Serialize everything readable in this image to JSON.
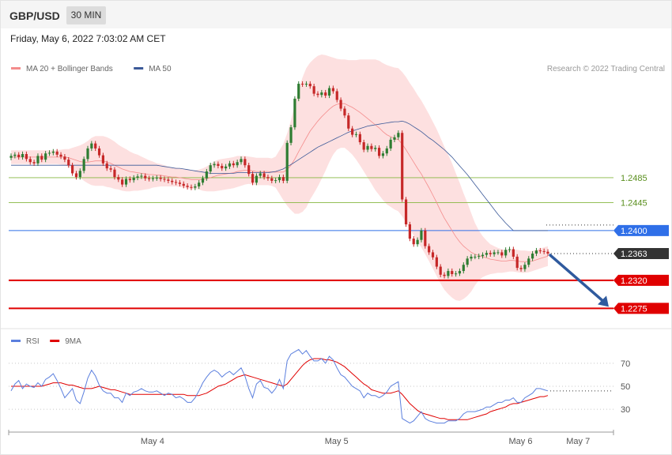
{
  "header": {
    "symbol": "GBP/USD",
    "timeframe": "30 MIN",
    "datetime": "Friday, May 6, 2022 7:03:02 AM CET"
  },
  "colors": {
    "bollinger": "#f48c8c",
    "bollinger_fill": "#fde0e0",
    "ma50": "#3b5998",
    "candle_up": "#2e7d32",
    "candle_down": "#c62828",
    "level_green": "#86b740",
    "level_blue": "#2f6fe8",
    "level_current": "#333333",
    "level_red": "#e00000",
    "arrow": "#2f5a9e",
    "rsi": "#5b7fde",
    "rsi_ma": "#e00000"
  },
  "chart_data": [
    {
      "type": "candlestick",
      "title": "GBP/USD",
      "legend": [
        {
          "name": "MA 20 + Bollinger Bands",
          "color": "#f48c8c"
        },
        {
          "name": "MA 50",
          "color": "#3b5998"
        }
      ],
      "copyright": "Research © 2022 Trading Central",
      "x_labels": [
        {
          "label": "May 4",
          "index": 34
        },
        {
          "label": "May 5",
          "index": 82
        },
        {
          "label": "May 6",
          "index": 130
        },
        {
          "label": "May 7",
          "index": 145
        }
      ],
      "ylim": [
        1.225,
        1.265
      ],
      "levels": [
        {
          "value": 1.2485,
          "label": "1.2485",
          "style": "resistance"
        },
        {
          "value": 1.2445,
          "label": "1.2445",
          "style": "resistance"
        },
        {
          "value": 1.24,
          "label": "1.2400",
          "style": "pivot"
        },
        {
          "value": 1.2363,
          "label": "1.2363",
          "style": "current"
        },
        {
          "value": 1.232,
          "label": "1.2320",
          "style": "support"
        },
        {
          "value": 1.2275,
          "label": "1.2275",
          "style": "support"
        }
      ],
      "close": [
        1.252,
        1.2522,
        1.2518,
        1.2523,
        1.2515,
        1.251,
        1.2508,
        1.252,
        1.2514,
        1.2524,
        1.2525,
        1.2527,
        1.2522,
        1.2519,
        1.2514,
        1.2505,
        1.2492,
        1.2486,
        1.2496,
        1.2515,
        1.2532,
        1.254,
        1.2532,
        1.2521,
        1.2508,
        1.25,
        1.2498,
        1.2486,
        1.2482,
        1.2474,
        1.2483,
        1.2481,
        1.2485,
        1.2487,
        1.2488,
        1.2484,
        1.2483,
        1.2484,
        1.2485,
        1.2483,
        1.2482,
        1.248,
        1.2478,
        1.2477,
        1.2475,
        1.2472,
        1.247,
        1.2469,
        1.2471,
        1.2477,
        1.2484,
        1.2495,
        1.2505,
        1.2507,
        1.2504,
        1.25,
        1.2503,
        1.2508,
        1.2505,
        1.251,
        1.2515,
        1.2505,
        1.2491,
        1.2477,
        1.2488,
        1.2492,
        1.2486,
        1.2484,
        1.248,
        1.2481,
        1.2486,
        1.248,
        1.2541,
        1.2566,
        1.2612,
        1.2636,
        1.2635,
        1.2636,
        1.2632,
        1.262,
        1.2618,
        1.2622,
        1.2617,
        1.2629,
        1.2624,
        1.261,
        1.2596,
        1.2585,
        1.2564,
        1.2554,
        1.2555,
        1.2542,
        1.253,
        1.2536,
        1.2531,
        1.2533,
        1.252,
        1.2524,
        1.2532,
        1.2546,
        1.255,
        1.2557,
        1.245,
        1.241,
        1.2387,
        1.2378,
        1.2385,
        1.24,
        1.2375,
        1.2365,
        1.2357,
        1.2342,
        1.2329,
        1.2327,
        1.2335,
        1.233,
        1.2331,
        1.2335,
        1.2345,
        1.2355,
        1.2358,
        1.2358,
        1.2359,
        1.2361,
        1.2364,
        1.2362,
        1.2365,
        1.2365,
        1.236,
        1.2369,
        1.237,
        1.2358,
        1.234,
        1.2338,
        1.2345,
        1.2355,
        1.2363,
        1.2368,
        1.2367,
        1.2366,
        1.2363
      ],
      "ma20": [
        1.2518,
        1.2518,
        1.2518,
        1.2518,
        1.2518,
        1.2518,
        1.2518,
        1.2518,
        1.2518,
        1.2518,
        1.2518,
        1.2518,
        1.2518,
        1.2518,
        1.2518,
        1.2517,
        1.2515,
        1.2513,
        1.2511,
        1.251,
        1.251,
        1.2511,
        1.2512,
        1.2512,
        1.2512,
        1.251,
        1.2508,
        1.2505,
        1.2502,
        1.2499,
        1.2497,
        1.2495,
        1.2494,
        1.2493,
        1.2492,
        1.2491,
        1.249,
        1.249,
        1.2489,
        1.2489,
        1.2488,
        1.2487,
        1.2486,
        1.2486,
        1.2485,
        1.2484,
        1.2483,
        1.2482,
        1.2482,
        1.2482,
        1.2482,
        1.2483,
        1.2485,
        1.2487,
        1.2489,
        1.249,
        1.2491,
        1.2492,
        1.2493,
        1.2495,
        1.2496,
        1.2497,
        1.2497,
        1.2496,
        1.2495,
        1.2495,
        1.2495,
        1.2495,
        1.2494,
        1.2494,
        1.2494,
        1.2494,
        1.2498,
        1.2505,
        1.2515,
        1.2527,
        1.2538,
        1.2549,
        1.256,
        1.2568,
        1.2576,
        1.2583,
        1.2589,
        1.2595,
        1.26,
        1.2603,
        1.2604,
        1.2604,
        1.2601,
        1.2598,
        1.2594,
        1.259,
        1.2585,
        1.258,
        1.2575,
        1.257,
        1.2565,
        1.2559,
        1.2554,
        1.2551,
        1.2548,
        1.2546,
        1.2539,
        1.253,
        1.252,
        1.251,
        1.25,
        1.2491,
        1.248,
        1.2469,
        1.2457,
        1.2445,
        1.2432,
        1.242,
        1.241,
        1.24,
        1.239,
        1.2382,
        1.2375,
        1.237,
        1.2365,
        1.2362,
        1.236,
        1.2358,
        1.2356,
        1.2354,
        1.2353,
        1.2352,
        1.2351,
        1.2351,
        1.2352,
        1.2352,
        1.2351,
        1.235,
        1.235,
        1.235,
        1.2351,
        1.2353,
        1.2355,
        1.2357,
        1.2359
      ],
      "bb_width": [
        0.0011,
        0.0011,
        0.0011,
        0.0011,
        0.0011,
        0.0011,
        0.0011,
        0.0011,
        0.0011,
        0.0011,
        0.0011,
        0.0011,
        0.0011,
        0.0012,
        0.0013,
        0.0014,
        0.0018,
        0.0022,
        0.0026,
        0.003,
        0.0034,
        0.0038,
        0.004,
        0.004,
        0.004,
        0.004,
        0.0039,
        0.0038,
        0.0036,
        0.0035,
        0.0034,
        0.0032,
        0.003,
        0.0029,
        0.0027,
        0.0025,
        0.0023,
        0.0021,
        0.0019,
        0.0018,
        0.0017,
        0.0016,
        0.0015,
        0.0015,
        0.0015,
        0.0015,
        0.0015,
        0.0015,
        0.0015,
        0.0016,
        0.0018,
        0.002,
        0.0022,
        0.0024,
        0.0025,
        0.0025,
        0.0025,
        0.0025,
        0.0025,
        0.0025,
        0.0024,
        0.0023,
        0.0022,
        0.0022,
        0.0022,
        0.0022,
        0.0022,
        0.0022,
        0.0022,
        0.0025,
        0.0035,
        0.0045,
        0.0058,
        0.0072,
        0.0088,
        0.01,
        0.0108,
        0.0112,
        0.011,
        0.0108,
        0.0105,
        0.01,
        0.0093,
        0.0085,
        0.0078,
        0.0073,
        0.0071,
        0.0071,
        0.0073,
        0.0076,
        0.008,
        0.0085,
        0.009,
        0.0095,
        0.01,
        0.0105,
        0.0108,
        0.011,
        0.0112,
        0.0113,
        0.0114,
        0.0115,
        0.0116,
        0.0117,
        0.0117,
        0.0118,
        0.0118,
        0.0118,
        0.0118,
        0.0118,
        0.0118,
        0.0118,
        0.0117,
        0.0115,
        0.0112,
        0.0108,
        0.0102,
        0.0095,
        0.0085,
        0.0075,
        0.0063,
        0.005,
        0.004,
        0.0033,
        0.0028,
        0.0024,
        0.0022,
        0.002,
        0.0019,
        0.0018,
        0.0018,
        0.0018,
        0.0018,
        0.0018,
        0.0018,
        0.0017,
        0.0016,
        0.0016,
        0.0016,
        0.0016,
        0.0016,
        0.0016,
        0.0016
      ],
      "ma50": [
        1.2505,
        1.2505,
        1.2505,
        1.2505,
        1.2505,
        1.2505,
        1.2505,
        1.2505,
        1.2505,
        1.2505,
        1.2505,
        1.2505,
        1.2505,
        1.2505,
        1.2505,
        1.2505,
        1.2505,
        1.2505,
        1.2505,
        1.2505,
        1.2505,
        1.2505,
        1.2505,
        1.2505,
        1.2505,
        1.2505,
        1.2505,
        1.2505,
        1.2505,
        1.2505,
        1.2505,
        1.2505,
        1.2505,
        1.2505,
        1.2505,
        1.2505,
        1.2505,
        1.2505,
        1.2505,
        1.2504,
        1.2503,
        1.2502,
        1.2501,
        1.25,
        1.25,
        1.2499,
        1.2498,
        1.2497,
        1.2496,
        1.2495,
        1.2494,
        1.2493,
        1.2492,
        1.2492,
        1.2492,
        1.2492,
        1.2492,
        1.2492,
        1.2492,
        1.2493,
        1.2493,
        1.2493,
        1.2493,
        1.2493,
        1.2493,
        1.2493,
        1.2493,
        1.2493,
        1.2494,
        1.2495,
        1.2497,
        1.2499,
        1.2503,
        1.2506,
        1.251,
        1.2514,
        1.2518,
        1.2522,
        1.2526,
        1.253,
        1.2534,
        1.2537,
        1.254,
        1.2543,
        1.2546,
        1.2549,
        1.2552,
        1.2555,
        1.2558,
        1.256,
        1.2562,
        1.2564,
        1.2566,
        1.2568,
        1.2569,
        1.257,
        1.2571,
        1.2572,
        1.2573,
        1.2574,
        1.2575,
        1.2575,
        1.2576,
        1.2574,
        1.2571,
        1.2567,
        1.2563,
        1.2559,
        1.2554,
        1.2549,
        1.2545,
        1.254,
        1.2535,
        1.253,
        1.2524,
        1.2518,
        1.2511,
        1.2504,
        1.2497,
        1.249,
        1.2482,
        1.2474,
        1.2466,
        1.2458,
        1.245,
        1.2442,
        1.2434,
        1.2426,
        1.2419,
        1.2412,
        1.2406,
        1.24,
        1.24,
        1.24,
        1.24,
        1.24,
        1.24,
        1.24,
        1.24,
        1.24,
        1.24
      ]
    },
    {
      "type": "line",
      "legend": [
        {
          "name": "RSI",
          "color": "#5b7fde"
        },
        {
          "name": "9MA",
          "color": "#e00000"
        }
      ],
      "ylim": [
        15,
        85
      ],
      "yticks": [
        {
          "value": 70,
          "label": "70"
        },
        {
          "value": 50,
          "label": "50"
        },
        {
          "value": 30,
          "label": "30"
        }
      ],
      "rsi": [
        46,
        52,
        55,
        48,
        52,
        50,
        49,
        53,
        50,
        56,
        58,
        61,
        55,
        48,
        40,
        44,
        48,
        38,
        35,
        45,
        57,
        64,
        59,
        51,
        46,
        44,
        44,
        40,
        40,
        36,
        44,
        42,
        45,
        46,
        48,
        46,
        45,
        45,
        46,
        44,
        42,
        44,
        43,
        40,
        41,
        39,
        36,
        36,
        40,
        46,
        53,
        58,
        62,
        64,
        62,
        58,
        61,
        63,
        60,
        63,
        66,
        59,
        48,
        40,
        52,
        55,
        49,
        48,
        44,
        48,
        56,
        48,
        72,
        78,
        80,
        82,
        78,
        81,
        76,
        72,
        72,
        74,
        70,
        76,
        73,
        66,
        60,
        58,
        54,
        50,
        48,
        46,
        40,
        44,
        42,
        42,
        40,
        42,
        45,
        50,
        52,
        54,
        22,
        20,
        18,
        20,
        24,
        28,
        22,
        20,
        19,
        18,
        18,
        18,
        20,
        20,
        20,
        22,
        26,
        28,
        28,
        28,
        29,
        30,
        32,
        32,
        34,
        36,
        36,
        38,
        38,
        40,
        36,
        36,
        40,
        42,
        44,
        48,
        48,
        47,
        46
      ],
      "rsi_ma": [
        50,
        50,
        50,
        50,
        50,
        50,
        50,
        50,
        50,
        51,
        52,
        53,
        53,
        53,
        52,
        51,
        51,
        50,
        49,
        48,
        48,
        48,
        49,
        50,
        49,
        48,
        47,
        47,
        46,
        45,
        44,
        43,
        43,
        43,
        43,
        43,
        43,
        43,
        43,
        43,
        43,
        43,
        43,
        43,
        43,
        43,
        42,
        42,
        42,
        42,
        43,
        44,
        46,
        48,
        50,
        51,
        52,
        54,
        56,
        58,
        59,
        60,
        59,
        58,
        57,
        56,
        55,
        54,
        53,
        52,
        51,
        50,
        52,
        56,
        60,
        64,
        68,
        71,
        73,
        74,
        74,
        74,
        73,
        73,
        72,
        71,
        69,
        67,
        64,
        61,
        58,
        55,
        52,
        50,
        47,
        46,
        45,
        44,
        44,
        44,
        45,
        46,
        43,
        39,
        35,
        32,
        29,
        27,
        26,
        25,
        24,
        23,
        22,
        22,
        21,
        21,
        21,
        21,
        21,
        21,
        22,
        23,
        24,
        25,
        26,
        28,
        29,
        30,
        31,
        32,
        34,
        35,
        35,
        36,
        37,
        38,
        39,
        40,
        41,
        41,
        42
      ]
    }
  ]
}
